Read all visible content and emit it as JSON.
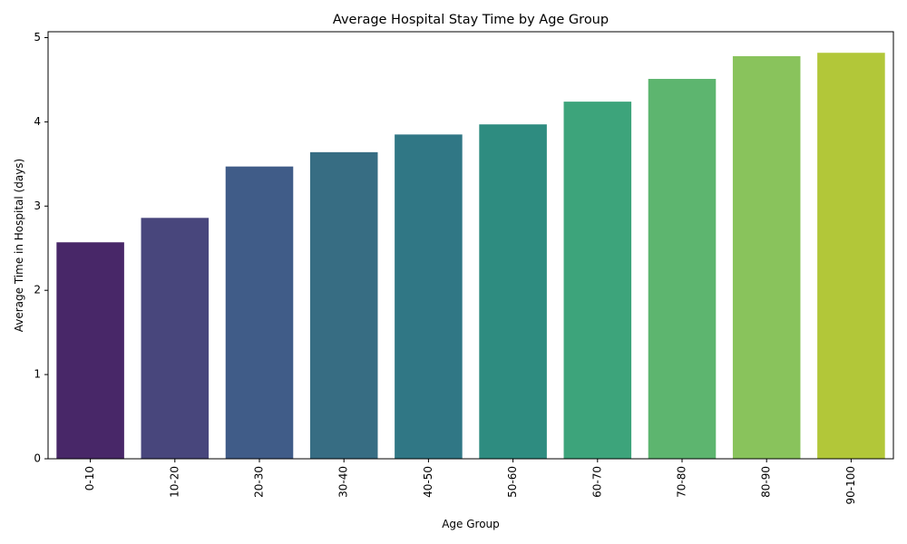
{
  "chart_data": {
    "type": "bar",
    "title": "Average Hospital Stay Time by Age Group",
    "xlabel": "Age Group",
    "ylabel": "Average Time in Hospital (days)",
    "categories": [
      "0-10",
      "10-20",
      "20-30",
      "30-40",
      "40-50",
      "50-60",
      "60-70",
      "70-80",
      "80-90",
      "90-100"
    ],
    "values": [
      2.57,
      2.86,
      3.47,
      3.64,
      3.85,
      3.97,
      4.24,
      4.51,
      4.78,
      4.82
    ],
    "colors": [
      "#482768",
      "#48467c",
      "#405c88",
      "#376d83",
      "#307785",
      "#2e8c80",
      "#3da47b",
      "#5db56f",
      "#89c35c",
      "#b2c739"
    ],
    "ylim": [
      0,
      5.07
    ],
    "yticks": [
      0,
      1,
      2,
      3,
      4,
      5
    ],
    "grid": false,
    "legend": "none"
  }
}
